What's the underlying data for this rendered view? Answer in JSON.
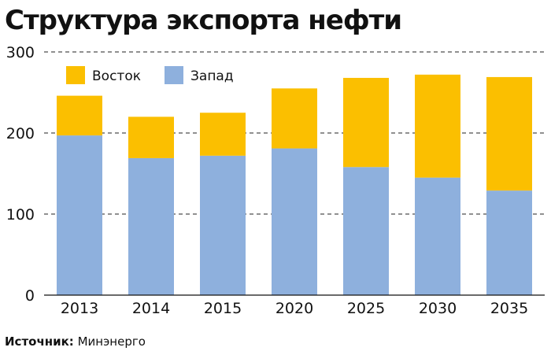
{
  "chart_data": {
    "type": "bar",
    "stacked": true,
    "title": "Структура экспорта нефти",
    "categories": [
      "2013",
      "2014",
      "2015",
      "2020",
      "2025",
      "2030",
      "2035"
    ],
    "series": [
      {
        "name": "Запад",
        "color": "#8eb0dd",
        "values": [
          197,
          169,
          172,
          181,
          158,
          145,
          129
        ]
      },
      {
        "name": "Восток",
        "color": "#fbbf00",
        "values": [
          49,
          51,
          53,
          74,
          110,
          127,
          140
        ]
      }
    ],
    "ylim": [
      0,
      300
    ],
    "yticks": [
      "0",
      "100",
      "200",
      "300"
    ],
    "grid": "dashed horizontal",
    "legend_position": "top-left"
  },
  "source": {
    "label": "Источник:",
    "value": "Минэнерго"
  }
}
